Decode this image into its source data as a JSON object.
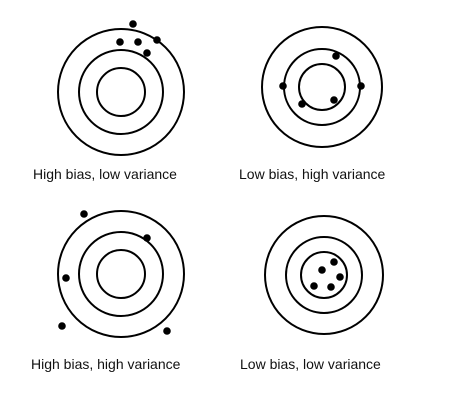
{
  "colors": {
    "ink": "#000000",
    "text": "#111111",
    "background": "#ffffff"
  },
  "panels": [
    {
      "id": "high-bias-low-variance",
      "caption": "High bias, low variance",
      "bias": "high",
      "variance": "low",
      "shot_count": 5
    },
    {
      "id": "low-bias-high-variance",
      "caption": "Low bias, high variance",
      "bias": "low",
      "variance": "high",
      "shot_count": 5
    },
    {
      "id": "high-bias-high-variance",
      "caption": "High bias, high variance",
      "bias": "high",
      "variance": "high",
      "shot_count": 5
    },
    {
      "id": "low-bias-low-variance",
      "caption": "Low bias, low variance",
      "bias": "low",
      "variance": "low",
      "shot_count": 5
    }
  ]
}
